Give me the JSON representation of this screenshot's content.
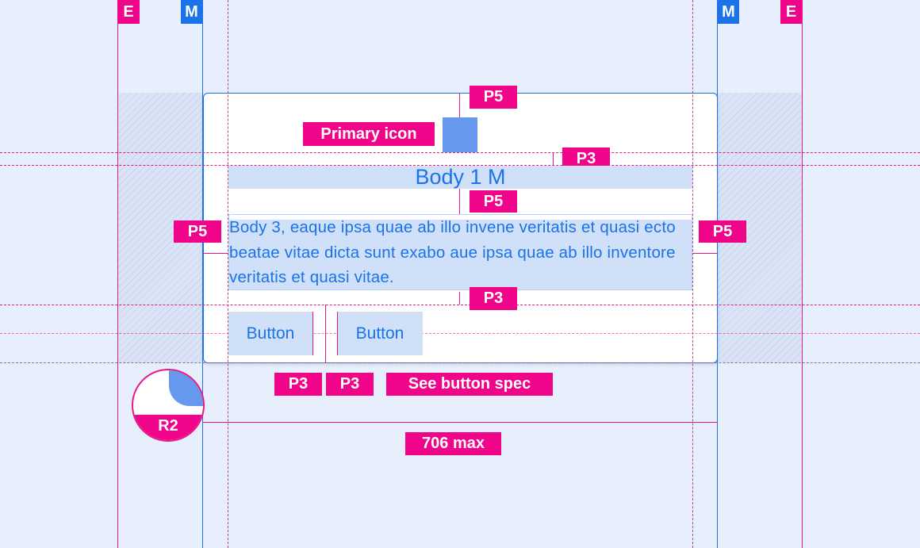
{
  "markers": {
    "edge": "E",
    "margin": "M"
  },
  "card": {
    "title": "Body 1 M",
    "body": "Body 3, eaque ipsa quae ab illo invene veritatis et quasi ecto beatae vitae dicta sunt exabo aue ipsa quae ab illo inventore veritatis et quasi vitae.",
    "buttons": [
      "Button",
      "Button"
    ]
  },
  "annotations": {
    "primary_icon": "Primary icon",
    "p5": "P5",
    "p3": "P3",
    "button_spec": "See button spec",
    "radius": "R2",
    "max_width": "706 max"
  },
  "colors": {
    "accent": "#1a73e8",
    "annotation": "#f0048a",
    "icon": "#6699ee",
    "highlight": "#d0e0f9"
  }
}
